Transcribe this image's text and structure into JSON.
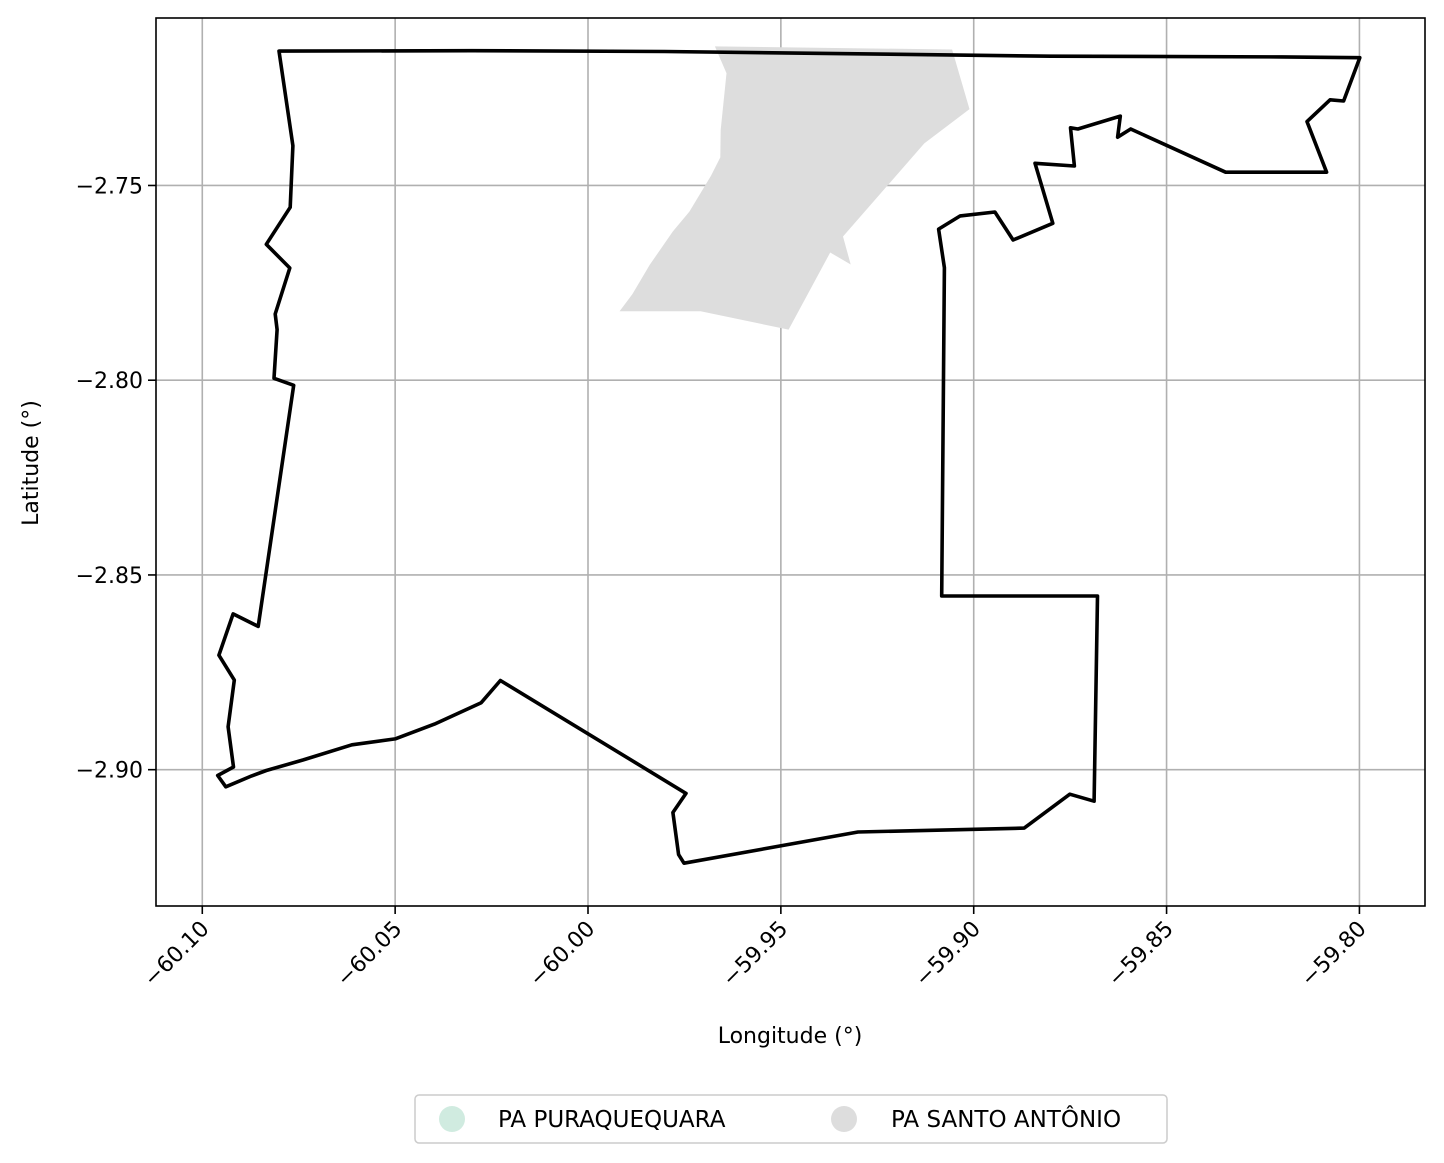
{
  "chart_data": {
    "type": "map",
    "xlabel": "Longitude (°)",
    "ylabel": "Latitude (°)",
    "xlim": [
      -60.112,
      -59.783
    ],
    "ylim": [
      -2.935,
      -2.707
    ],
    "x_ticks": [
      -60.1,
      -60.05,
      -60.0,
      -59.95,
      -59.9,
      -59.85,
      -59.8
    ],
    "x_tick_labels": [
      "−60.10",
      "−60.05",
      "−60.00",
      "−59.95",
      "−59.90",
      "−59.85",
      "−59.80"
    ],
    "y_ticks": [
      -2.75,
      -2.8,
      -2.85,
      -2.9
    ],
    "y_tick_labels": [
      "−2.75",
      "−2.80",
      "−2.85",
      "−2.90"
    ],
    "grid": true,
    "legend_position": "bottom-center",
    "legend": [
      {
        "label": "PA PURAQUEQUARA",
        "color": "#d0ebe0"
      },
      {
        "label": "PA SANTO ANTÔNIO",
        "color": "#dddddd"
      }
    ],
    "boundary_color": "#000000",
    "shaded_area_color": "#dddddd",
    "boundary_outline": [
      [
        -60.0801,
        -2.7155
      ],
      [
        -60.0301,
        -2.7154
      ],
      [
        -59.9801,
        -2.7156
      ],
      [
        -59.9301,
        -2.7162
      ],
      [
        -59.8801,
        -2.7168
      ],
      [
        -59.8201,
        -2.717
      ],
      [
        -59.7999,
        -2.7172
      ],
      [
        -59.8041,
        -2.7283
      ],
      [
        -59.8076,
        -2.728
      ],
      [
        -59.8136,
        -2.7336
      ],
      [
        -59.8085,
        -2.7466
      ],
      [
        -59.8347,
        -2.7466
      ],
      [
        -59.8593,
        -2.7355
      ],
      [
        -59.8627,
        -2.7376
      ],
      [
        -59.862,
        -2.7322
      ],
      [
        -59.873,
        -2.7355
      ],
      [
        -59.8749,
        -2.7352
      ],
      [
        -59.8739,
        -2.745
      ],
      [
        -59.8841,
        -2.7443
      ],
      [
        -59.8795,
        -2.7597
      ],
      [
        -59.8898,
        -2.764
      ],
      [
        -59.8945,
        -2.7568
      ],
      [
        -59.9035,
        -2.7578
      ],
      [
        -59.9091,
        -2.7612
      ],
      [
        -59.9076,
        -2.7711
      ],
      [
        -59.9083,
        -2.8554
      ],
      [
        -59.8679,
        -2.8554
      ],
      [
        -59.8688,
        -2.9081
      ],
      [
        -59.8751,
        -2.9063
      ],
      [
        -59.8869,
        -2.915
      ],
      [
        -59.93,
        -2.916
      ],
      [
        -59.9751,
        -2.924
      ],
      [
        -59.9765,
        -2.9218
      ],
      [
        -59.978,
        -2.911
      ],
      [
        -59.9746,
        -2.9061
      ],
      [
        -60.0227,
        -2.8771
      ],
      [
        -60.0277,
        -2.8828
      ],
      [
        -60.0398,
        -2.8883
      ],
      [
        -60.05,
        -2.8921
      ],
      [
        -60.0612,
        -2.8936
      ],
      [
        -60.0738,
        -2.8975
      ],
      [
        -60.0834,
        -2.9002
      ],
      [
        -60.0872,
        -2.9016
      ],
      [
        -60.0939,
        -2.9044
      ],
      [
        -60.096,
        -2.9015
      ],
      [
        -60.0919,
        -2.8993
      ],
      [
        -60.0933,
        -2.889
      ],
      [
        -60.0917,
        -2.877
      ],
      [
        -60.0957,
        -2.8706
      ],
      [
        -60.092,
        -2.86
      ],
      [
        -60.0855,
        -2.8632
      ],
      [
        -60.0763,
        -2.8013
      ],
      [
        -60.0814,
        -2.7995
      ],
      [
        -60.0806,
        -2.787
      ],
      [
        -60.0811,
        -2.783
      ],
      [
        -60.0773,
        -2.7712
      ],
      [
        -60.0834,
        -2.7651
      ],
      [
        -60.0772,
        -2.7556
      ],
      [
        -60.0765,
        -2.7398
      ],
      [
        -60.0801,
        -2.7155
      ]
    ],
    "shaded_area_outline": [
      [
        -59.9671,
        -2.7143
      ],
      [
        -59.9056,
        -2.7151
      ],
      [
        -59.9011,
        -2.7304
      ],
      [
        -59.9128,
        -2.7392
      ],
      [
        -59.9339,
        -2.7631
      ],
      [
        -59.9319,
        -2.7703
      ],
      [
        -59.9372,
        -2.7672
      ],
      [
        -59.948,
        -2.787
      ],
      [
        -59.9708,
        -2.7823
      ],
      [
        -59.9918,
        -2.7823
      ],
      [
        -59.9885,
        -2.7779
      ],
      [
        -59.984,
        -2.7704
      ],
      [
        -59.978,
        -2.7618
      ],
      [
        -59.9737,
        -2.7567
      ],
      [
        -59.9681,
        -2.7475
      ],
      [
        -59.9657,
        -2.7428
      ],
      [
        -59.9656,
        -2.7357
      ],
      [
        -59.9641,
        -2.7212
      ],
      [
        -59.9671,
        -2.7143
      ]
    ]
  }
}
